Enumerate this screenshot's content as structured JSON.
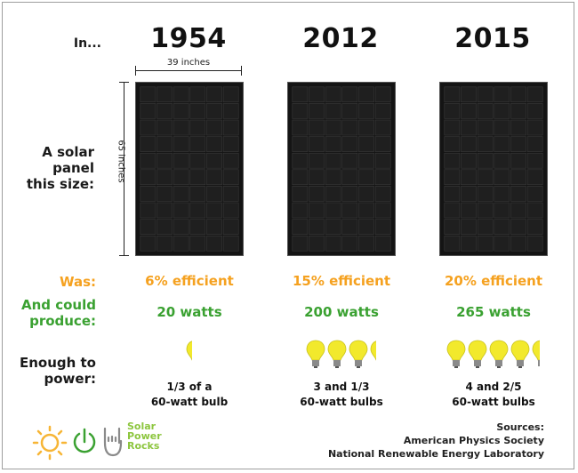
{
  "labels": {
    "in": "In...",
    "panel": [
      "A solar",
      "panel",
      "this size:"
    ],
    "was": "Was:",
    "produce": [
      "And could",
      "produce:"
    ],
    "power": [
      "Enough to",
      "power:"
    ]
  },
  "dimensions": {
    "width": "39 inches",
    "height": "65 inches"
  },
  "columns": [
    {
      "year": "1954",
      "efficiency": "6% efficient",
      "watts": "20 watts",
      "bulbs_count": 0.333,
      "bulb_lines": [
        "1/3 of a",
        "60-watt bulb"
      ]
    },
    {
      "year": "2012",
      "efficiency": "15% efficient",
      "watts": "200 watts",
      "bulbs_count": 3.333,
      "bulb_lines": [
        "3 and 1/3",
        "60-watt bulbs"
      ]
    },
    {
      "year": "2015",
      "efficiency": "20% efficient",
      "watts": "265 watts",
      "bulbs_count": 4.4,
      "bulb_lines": [
        "4 and 2/5",
        "60-watt bulbs"
      ]
    }
  ],
  "logo": {
    "lines": [
      "Solar",
      "Power",
      "Rocks"
    ]
  },
  "sources": [
    "Sources:",
    "American Physics Society",
    "National Renewable Energy Laboratory"
  ],
  "colors": {
    "efficiency": "#f5a11f",
    "produce": "#3aa131",
    "logo_sun": "#f7b535",
    "logo_green": "#8dc63f",
    "bulb": "#f2e92c",
    "panel": "#141414"
  }
}
